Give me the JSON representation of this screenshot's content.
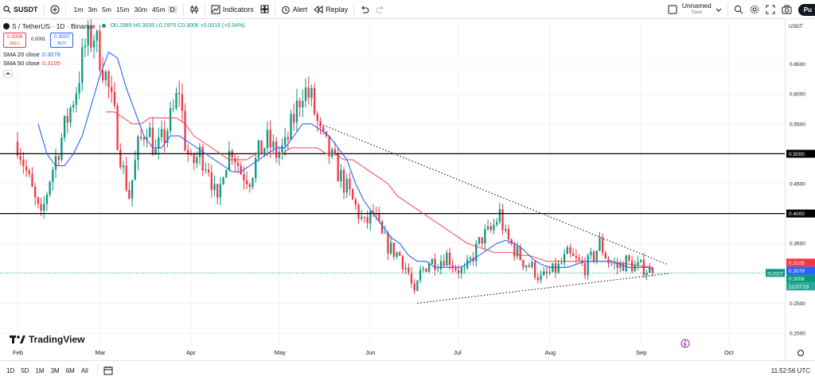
{
  "toolbar": {
    "symbol": "SUSDT",
    "intervals": [
      "1m",
      "3m",
      "5m",
      "15m",
      "30m",
      "45m",
      "D"
    ],
    "active_interval": "D",
    "indicators_label": "Indicators",
    "alert_label": "Alert",
    "replay_label": "Replay",
    "layout_name": "Unnamed",
    "layout_status": "Save",
    "publish_label": "Pu"
  },
  "legend": {
    "title": "S / TetherUS · 1D · Binance",
    "ohlc": "O0.2989 H0.3035 L0.2975 C0.3006 +0.0016 (+0.54%)",
    "sell_price": "0.3006",
    "sell_label": "SELL",
    "spread": "0.0001",
    "buy_price": "0.3007",
    "buy_label": "BUY",
    "sma20_label": "SMA 20 close",
    "sma20_value": "0.3078",
    "sma50_label": "SMA 50 close",
    "sma50_value": "0.3105"
  },
  "bottombar": {
    "ranges": [
      "1D",
      "5D",
      "1M",
      "3M",
      "6M",
      "All"
    ],
    "clock": "11:52:56 UTC"
  },
  "branding": "TradingView",
  "colors": {
    "up": "#089981",
    "down": "#f23645",
    "sma20": "#2962ff",
    "sma50": "#f23645",
    "hline": "#000000",
    "grid": "#f0f3fa"
  },
  "chart_data": {
    "type": "candlestick",
    "symbol": "SUSDT",
    "exchange": "Binance",
    "timeframe": "1D",
    "currency": "USDT",
    "ylim": [
      0.18,
      0.72
    ],
    "y_ticks": [
      0.2,
      0.25,
      0.3,
      0.35,
      0.4,
      0.45,
      0.5,
      0.55,
      0.6,
      0.65
    ],
    "x_months": [
      {
        "label": "Feb",
        "day": 0
      },
      {
        "label": "Mar",
        "day": 28
      },
      {
        "label": "Apr",
        "day": 59
      },
      {
        "label": "May",
        "day": 89
      },
      {
        "label": "Jun",
        "day": 120
      },
      {
        "label": "Jul",
        "day": 150
      },
      {
        "label": "Aug",
        "day": 181
      },
      {
        "label": "Sep",
        "day": 212
      },
      {
        "label": "Oct",
        "day": 242
      }
    ],
    "close_path": [
      [
        0,
        0.52
      ],
      [
        3,
        0.47
      ],
      [
        6,
        0.42
      ],
      [
        8,
        0.39
      ],
      [
        11,
        0.46
      ],
      [
        14,
        0.51
      ],
      [
        17,
        0.56
      ],
      [
        20,
        0.61
      ],
      [
        23,
        0.68
      ],
      [
        26,
        0.7
      ],
      [
        30,
        0.63
      ],
      [
        33,
        0.56
      ],
      [
        36,
        0.47
      ],
      [
        38,
        0.43
      ],
      [
        41,
        0.51
      ],
      [
        44,
        0.55
      ],
      [
        47,
        0.5
      ],
      [
        50,
        0.53
      ],
      [
        53,
        0.57
      ],
      [
        55,
        0.61
      ],
      [
        57,
        0.52
      ],
      [
        59,
        0.48
      ],
      [
        62,
        0.5
      ],
      [
        65,
        0.48
      ],
      [
        68,
        0.41
      ],
      [
        70,
        0.48
      ],
      [
        73,
        0.51
      ],
      [
        76,
        0.47
      ],
      [
        79,
        0.46
      ],
      [
        82,
        0.5
      ],
      [
        85,
        0.52
      ],
      [
        88,
        0.5
      ],
      [
        91,
        0.51
      ],
      [
        94,
        0.56
      ],
      [
        97,
        0.61
      ],
      [
        100,
        0.59
      ],
      [
        103,
        0.53
      ],
      [
        106,
        0.5
      ],
      [
        109,
        0.47
      ],
      [
        112,
        0.44
      ],
      [
        115,
        0.41
      ],
      [
        118,
        0.38
      ],
      [
        121,
        0.4
      ],
      [
        124,
        0.36
      ],
      [
        127,
        0.34
      ],
      [
        130,
        0.33
      ],
      [
        133,
        0.3
      ],
      [
        135,
        0.26
      ],
      [
        137,
        0.3
      ],
      [
        140,
        0.32
      ],
      [
        143,
        0.32
      ],
      [
        146,
        0.33
      ],
      [
        149,
        0.31
      ],
      [
        152,
        0.3
      ],
      [
        155,
        0.33
      ],
      [
        158,
        0.36
      ],
      [
        161,
        0.37
      ],
      [
        164,
        0.4
      ],
      [
        166,
        0.36
      ],
      [
        169,
        0.34
      ],
      [
        172,
        0.32
      ],
      [
        175,
        0.31
      ],
      [
        178,
        0.29
      ],
      [
        181,
        0.3
      ],
      [
        184,
        0.31
      ],
      [
        187,
        0.33
      ],
      [
        190,
        0.32
      ],
      [
        193,
        0.31
      ],
      [
        196,
        0.33
      ],
      [
        198,
        0.35
      ],
      [
        201,
        0.32
      ],
      [
        204,
        0.31
      ],
      [
        207,
        0.32
      ],
      [
        210,
        0.31
      ],
      [
        213,
        0.31
      ],
      [
        216,
        0.3
      ]
    ],
    "sma20": [
      [
        7,
        0.55
      ],
      [
        10,
        0.5
      ],
      [
        13,
        0.48
      ],
      [
        16,
        0.48
      ],
      [
        19,
        0.5
      ],
      [
        22,
        0.53
      ],
      [
        25,
        0.58
      ],
      [
        28,
        0.63
      ],
      [
        31,
        0.67
      ],
      [
        34,
        0.66
      ],
      [
        37,
        0.61
      ],
      [
        40,
        0.57
      ],
      [
        43,
        0.53
      ],
      [
        46,
        0.51
      ],
      [
        49,
        0.51
      ],
      [
        52,
        0.53
      ],
      [
        55,
        0.53
      ],
      [
        58,
        0.52
      ],
      [
        61,
        0.51
      ],
      [
        64,
        0.5
      ],
      [
        67,
        0.49
      ],
      [
        70,
        0.48
      ],
      [
        73,
        0.47
      ],
      [
        76,
        0.47
      ],
      [
        79,
        0.48
      ],
      [
        82,
        0.49
      ],
      [
        85,
        0.5
      ],
      [
        88,
        0.51
      ],
      [
        91,
        0.51
      ],
      [
        94,
        0.53
      ],
      [
        97,
        0.55
      ],
      [
        100,
        0.55
      ],
      [
        103,
        0.54
      ],
      [
        106,
        0.53
      ],
      [
        109,
        0.51
      ],
      [
        112,
        0.49
      ],
      [
        115,
        0.45
      ],
      [
        118,
        0.42
      ],
      [
        121,
        0.4
      ],
      [
        124,
        0.38
      ],
      [
        127,
        0.36
      ],
      [
        130,
        0.35
      ],
      [
        133,
        0.33
      ],
      [
        136,
        0.32
      ],
      [
        139,
        0.32
      ],
      [
        142,
        0.31
      ],
      [
        145,
        0.31
      ],
      [
        148,
        0.31
      ],
      [
        151,
        0.31
      ],
      [
        154,
        0.32
      ],
      [
        157,
        0.33
      ],
      [
        160,
        0.34
      ],
      [
        163,
        0.35
      ],
      [
        166,
        0.355
      ],
      [
        169,
        0.35
      ],
      [
        172,
        0.34
      ],
      [
        175,
        0.325
      ],
      [
        178,
        0.315
      ],
      [
        181,
        0.31
      ],
      [
        184,
        0.31
      ],
      [
        187,
        0.31
      ],
      [
        190,
        0.315
      ],
      [
        193,
        0.32
      ],
      [
        196,
        0.32
      ],
      [
        199,
        0.32
      ],
      [
        202,
        0.32
      ],
      [
        205,
        0.315
      ],
      [
        208,
        0.31
      ],
      [
        211,
        0.31
      ],
      [
        214,
        0.31
      ],
      [
        216,
        0.3078
      ]
    ],
    "sma50": [
      [
        30,
        0.57
      ],
      [
        33,
        0.57
      ],
      [
        36,
        0.56
      ],
      [
        39,
        0.55
      ],
      [
        42,
        0.55
      ],
      [
        45,
        0.56
      ],
      [
        48,
        0.56
      ],
      [
        51,
        0.56
      ],
      [
        54,
        0.56
      ],
      [
        57,
        0.55
      ],
      [
        60,
        0.53
      ],
      [
        63,
        0.52
      ],
      [
        66,
        0.51
      ],
      [
        69,
        0.5
      ],
      [
        72,
        0.49
      ],
      [
        75,
        0.49
      ],
      [
        78,
        0.49
      ],
      [
        81,
        0.5
      ],
      [
        84,
        0.5
      ],
      [
        87,
        0.5
      ],
      [
        90,
        0.5
      ],
      [
        93,
        0.51
      ],
      [
        96,
        0.51
      ],
      [
        99,
        0.51
      ],
      [
        102,
        0.51
      ],
      [
        105,
        0.5
      ],
      [
        108,
        0.5
      ],
      [
        111,
        0.49
      ],
      [
        114,
        0.49
      ],
      [
        117,
        0.48
      ],
      [
        120,
        0.47
      ],
      [
        123,
        0.46
      ],
      [
        126,
        0.45
      ],
      [
        129,
        0.43
      ],
      [
        132,
        0.42
      ],
      [
        135,
        0.41
      ],
      [
        138,
        0.4
      ],
      [
        141,
        0.39
      ],
      [
        144,
        0.38
      ],
      [
        147,
        0.37
      ],
      [
        150,
        0.36
      ],
      [
        153,
        0.35
      ],
      [
        156,
        0.345
      ],
      [
        159,
        0.34
      ],
      [
        162,
        0.335
      ],
      [
        165,
        0.335
      ],
      [
        168,
        0.335
      ],
      [
        171,
        0.33
      ],
      [
        174,
        0.33
      ],
      [
        177,
        0.325
      ],
      [
        180,
        0.32
      ],
      [
        183,
        0.32
      ],
      [
        186,
        0.32
      ],
      [
        189,
        0.32
      ],
      [
        192,
        0.32
      ],
      [
        195,
        0.32
      ],
      [
        198,
        0.32
      ],
      [
        201,
        0.32
      ],
      [
        204,
        0.318
      ],
      [
        207,
        0.316
      ],
      [
        210,
        0.314
      ],
      [
        213,
        0.312
      ],
      [
        216,
        0.3105
      ]
    ],
    "horizontal_lines": [
      0.5,
      0.4
    ],
    "trendlines": [
      {
        "from": [
          103,
          0.55
        ],
        "to": [
          221,
          0.315
        ]
      },
      {
        "from": [
          136,
          0.25
        ],
        "to": [
          222,
          0.3
        ]
      }
    ],
    "current_price": 0.3006,
    "scale_labels": [
      {
        "value": 0.3105,
        "text": "0.3105",
        "color": "#f23645"
      },
      {
        "value": 0.3078,
        "text": "0.3078",
        "color": "#2962ff"
      },
      {
        "value": 0.3006,
        "text": "0.3006",
        "color": "#089981"
      }
    ],
    "price_tag_symbol": "SUSDT",
    "countdown": "12:07:03"
  }
}
